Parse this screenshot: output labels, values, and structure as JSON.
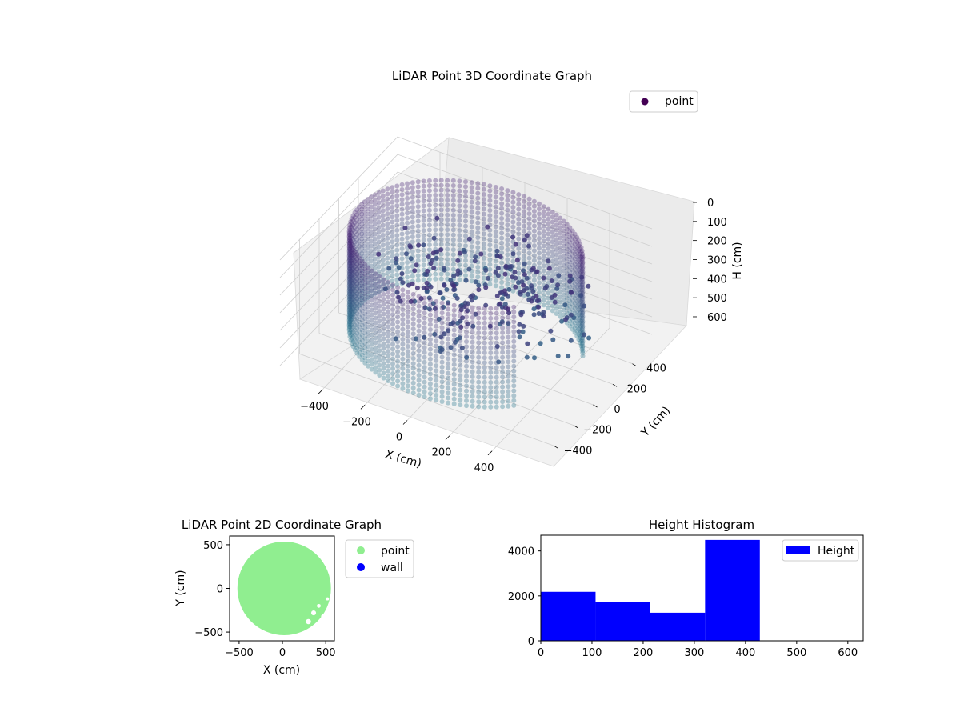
{
  "chart_data": [
    {
      "type": "scatter",
      "projection": "3d",
      "title": "LiDAR Point 3D Coordinate Graph",
      "xlabel": "X (cm)",
      "ylabel": "Y (cm)",
      "zlabel": "H (cm)",
      "xlim": [
        -600,
        600
      ],
      "ylim": [
        -600,
        600
      ],
      "zlim": [
        0,
        650
      ],
      "z_inverted": true,
      "xticks": [
        -400,
        -200,
        0,
        200,
        400
      ],
      "yticks": [
        -400,
        -200,
        0,
        200,
        400
      ],
      "zticks": [
        0,
        100,
        200,
        300,
        400,
        500,
        600
      ],
      "grid": true,
      "legend": {
        "position": "top-right",
        "entries": [
          {
            "label": "point",
            "color": "#440154"
          }
        ]
      },
      "colormap": "viridis",
      "series": [
        {
          "name": "point",
          "shape": "cylindrical wall",
          "radius": 500,
          "height_range": [
            0,
            560
          ],
          "angle_range_deg": [
            25,
            320
          ],
          "color_top": "#482475",
          "color_bottom": "#2a788e"
        }
      ]
    },
    {
      "type": "scatter",
      "title": "LiDAR Point 2D Coordinate Graph",
      "xlabel": "X (cm)",
      "ylabel": "Y (cm)",
      "xlim": [
        -610,
        600
      ],
      "ylim": [
        -600,
        600
      ],
      "xticks": [
        -500,
        0,
        500
      ],
      "yticks": [
        -500,
        0,
        500
      ],
      "legend": {
        "position": "outside-right",
        "entries": [
          {
            "label": "point",
            "color": "#90ee90"
          },
          {
            "label": "wall",
            "color": "#0000ff"
          }
        ]
      },
      "series": [
        {
          "name": "point",
          "shape": "disk",
          "center": [
            20,
            0
          ],
          "radius": 540,
          "color": "#90ee90"
        },
        {
          "name": "wall",
          "values": [],
          "color": "#0000ff"
        }
      ]
    },
    {
      "type": "bar",
      "title": "Height Histogram",
      "xlim": [
        0,
        630
      ],
      "ylim": [
        0,
        4700
      ],
      "xticks": [
        0,
        100,
        200,
        300,
        400,
        500,
        600
      ],
      "yticks": [
        0,
        2000,
        4000
      ],
      "bin_edges": [
        0,
        107,
        214,
        321,
        428,
        535,
        642
      ],
      "values": [
        2180,
        1740,
        1250,
        4490,
        0,
        0
      ],
      "color": "#0000ff",
      "legend": {
        "position": "top-right",
        "entries": [
          {
            "label": "Height",
            "color": "#0000ff"
          }
        ]
      }
    }
  ]
}
